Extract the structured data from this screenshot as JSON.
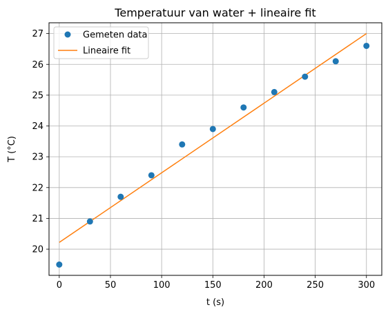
{
  "chart_data": {
    "type": "scatter",
    "title": "Temperatuur van water + lineaire fit",
    "xlabel": "t (s)",
    "ylabel": "T (°C)",
    "xlim": [
      -10,
      315
    ],
    "ylim": [
      19.15,
      27.35
    ],
    "xticks": [
      0,
      50,
      100,
      150,
      200,
      250,
      300
    ],
    "yticks": [
      20,
      21,
      22,
      23,
      24,
      25,
      26,
      27
    ],
    "grid": true,
    "legend_position": "top-left",
    "series": [
      {
        "name": "Gemeten data",
        "kind": "scatter",
        "color": "#1f77b4",
        "x": [
          0,
          30,
          60,
          90,
          120,
          150,
          180,
          210,
          240,
          270,
          300
        ],
        "y": [
          19.5,
          20.9,
          21.7,
          22.4,
          23.4,
          23.9,
          24.6,
          25.1,
          25.6,
          26.1,
          26.6
        ]
      },
      {
        "name": "Lineaire fit",
        "kind": "line",
        "color": "#ff7f0e",
        "x": [
          0,
          300
        ],
        "y": [
          20.22,
          27.0
        ]
      }
    ]
  }
}
